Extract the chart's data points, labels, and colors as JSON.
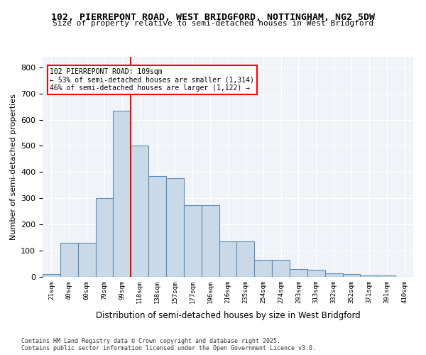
{
  "title1": "102, PIERREPONT ROAD, WEST BRIDGFORD, NOTTINGHAM, NG2 5DW",
  "title2": "Size of property relative to semi-detached houses in West Bridgford",
  "xlabel": "Distribution of semi-detached houses by size in West Bridgford",
  "ylabel": "Number of semi-detached properties",
  "bins": [
    "21sqm",
    "40sqm",
    "60sqm",
    "79sqm",
    "99sqm",
    "118sqm",
    "138sqm",
    "157sqm",
    "177sqm",
    "196sqm",
    "216sqm",
    "235sqm",
    "254sqm",
    "274sqm",
    "293sqm",
    "313sqm",
    "332sqm",
    "352sqm",
    "371sqm",
    "391sqm",
    "410sqm"
  ],
  "bar_heights": [
    10,
    130,
    130,
    300,
    635,
    500,
    385,
    378,
    275,
    275,
    135,
    135,
    65,
    65,
    30,
    28,
    13,
    10,
    5,
    5,
    0
  ],
  "bar_color": "#c9d9e8",
  "bar_edge_color": "#5b8db8",
  "vline_x": 5,
  "vline_color": "red",
  "property_sqm": 109,
  "property_label": "102 PIERREPONT ROAD: 109sqm",
  "pct_smaller": 53,
  "count_smaller": 1314,
  "pct_larger": 46,
  "count_larger": 1122,
  "annotation_box_color": "white",
  "annotation_box_edge": "red",
  "ylim": [
    0,
    840
  ],
  "yticks": [
    0,
    100,
    200,
    300,
    400,
    500,
    600,
    700,
    800
  ],
  "footer1": "Contains HM Land Registry data © Crown copyright and database right 2025.",
  "footer2": "Contains public sector information licensed under the Open Government Licence v3.0.",
  "bg_color": "#f0f4f8",
  "grid_color": "white"
}
